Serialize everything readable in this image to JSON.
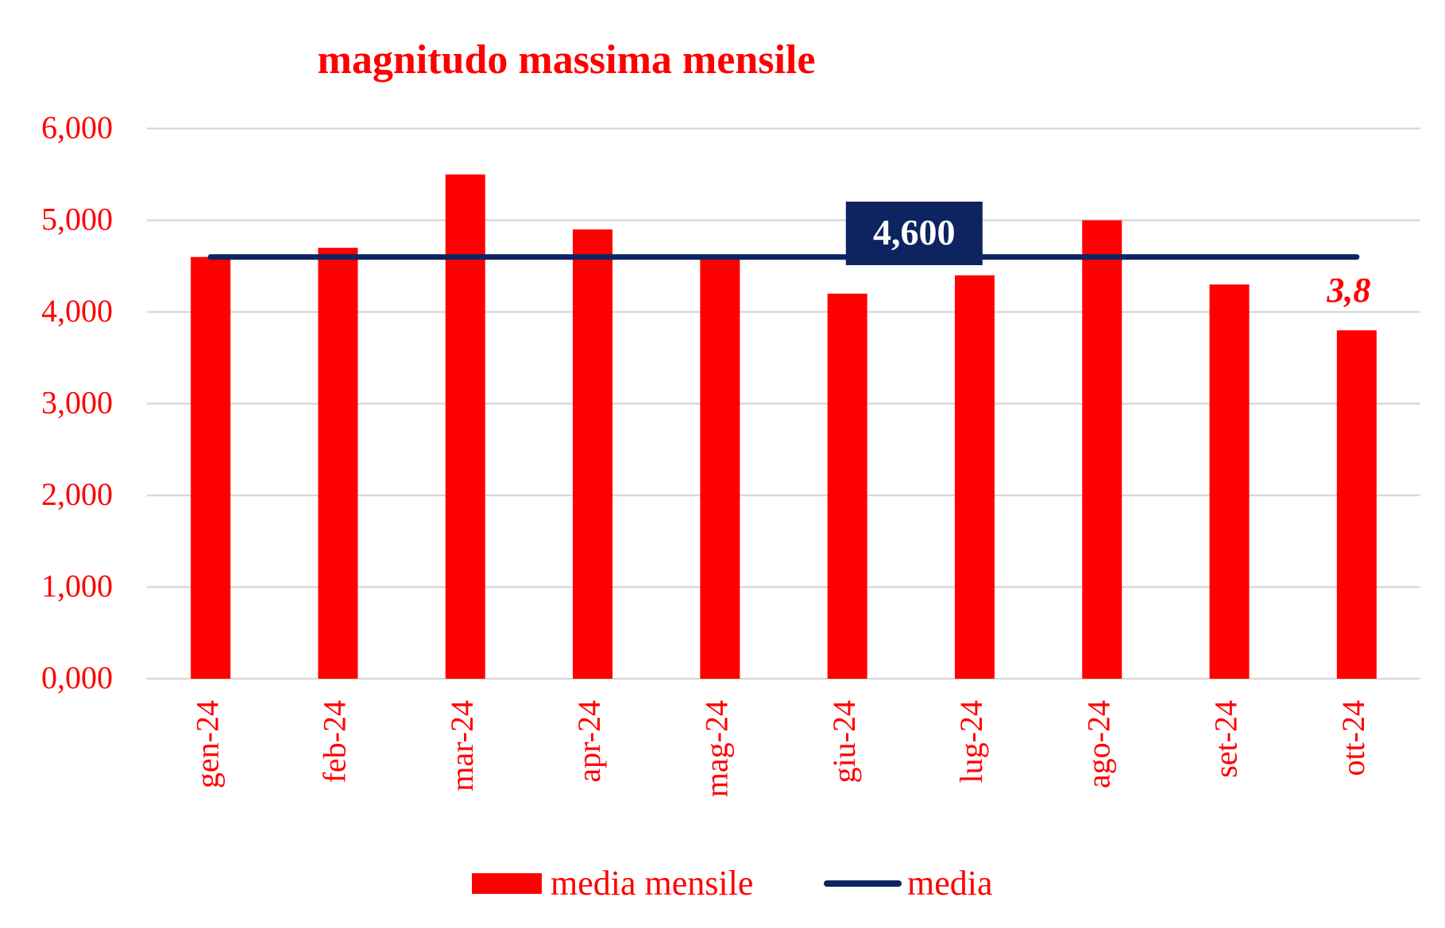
{
  "chart_data": {
    "type": "bar",
    "title": "magnitudo massima mensile",
    "categories": [
      "gen-24",
      "feb-24",
      "mar-24",
      "apr-24",
      "mag-24",
      "giu-24",
      "lug-24",
      "ago-24",
      "set-24",
      "ott-24"
    ],
    "series": [
      {
        "name": "media mensile",
        "type": "bar",
        "color": "#ff0000",
        "values": [
          4.6,
          4.7,
          5.5,
          4.9,
          4.6,
          4.2,
          4.4,
          5.0,
          4.3,
          3.8
        ]
      },
      {
        "name": "media",
        "type": "line",
        "color": "#0d2461",
        "values": [
          4.6,
          4.6,
          4.6,
          4.6,
          4.6,
          4.6,
          4.6,
          4.6,
          4.6,
          4.6
        ]
      }
    ],
    "yticks": [
      0,
      1,
      2,
      3,
      4,
      5,
      6
    ],
    "ytick_labels": [
      "0,000",
      "1,000",
      "2,000",
      "3,000",
      "4,000",
      "5,000",
      "6,000"
    ],
    "ylim": [
      0,
      6
    ],
    "grid": true,
    "legend_position": "bottom",
    "annotations": {
      "mean_label": "4,600",
      "last_value_label": "3,8"
    },
    "colors": {
      "bar": "#ff0000",
      "line": "#0d2461",
      "grid": "#d9d9d9",
      "text": "#ff0000",
      "mean_label_bg": "#0d2461",
      "mean_label_text": "#ffffff"
    }
  }
}
